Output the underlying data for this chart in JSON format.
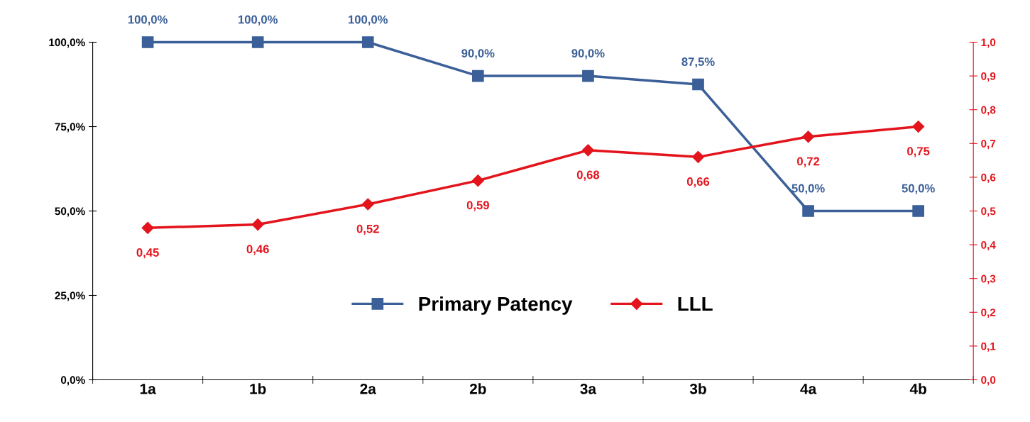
{
  "chart_data": {
    "type": "line",
    "categories": [
      "1a",
      "1b",
      "2a",
      "2b",
      "3a",
      "3b",
      "4a",
      "4b"
    ],
    "series": [
      {
        "name": "Primary Patency",
        "color": "#3b5f98",
        "marker": "square",
        "values": [
          100,
          100,
          100,
          90,
          90,
          87.5,
          50,
          50
        ],
        "value_labels": [
          "100,0%",
          "100,0%",
          "100,0%",
          "90,0%",
          "90,0%",
          "87,5%",
          "50,0%",
          "50,0%"
        ]
      },
      {
        "name": "LLL",
        "color": "#e3141c",
        "marker": "diamond",
        "axis": "y2",
        "values": [
          0.45,
          0.46,
          0.52,
          0.59,
          0.68,
          0.66,
          0.72,
          0.75
        ],
        "value_labels": [
          "0,45",
          "0,46",
          "0,52",
          "0,59",
          "0,68",
          "0,66",
          "0,72",
          "0,75"
        ]
      }
    ],
    "ylim": [
      0,
      100
    ],
    "yticks": [
      {
        "value": 0,
        "label": "0,0%"
      },
      {
        "value": 25,
        "label": "25,0%"
      },
      {
        "value": 50,
        "label": "50,0%"
      },
      {
        "value": 75,
        "label": "75,0%"
      },
      {
        "value": 100,
        "label": "100,0%"
      }
    ],
    "y2lim": [
      0,
      1
    ],
    "y2ticks": [
      {
        "value": 0,
        "label": "0,0"
      },
      {
        "value": 0.1,
        "label": "0,1"
      },
      {
        "value": 0.2,
        "label": "0,2"
      },
      {
        "value": 0.3,
        "label": "0,3"
      },
      {
        "value": 0.4,
        "label": "0,4"
      },
      {
        "value": 0.5,
        "label": "0,5"
      },
      {
        "value": 0.6,
        "label": "0,6"
      },
      {
        "value": 0.7,
        "label": "0,7"
      },
      {
        "value": 0.8,
        "label": "0,8"
      },
      {
        "value": 0.9,
        "label": "0,9"
      },
      {
        "value": 1.0,
        "label": "1,0"
      }
    ],
    "grid": false,
    "legend": "bottom",
    "line_style": "solid"
  }
}
